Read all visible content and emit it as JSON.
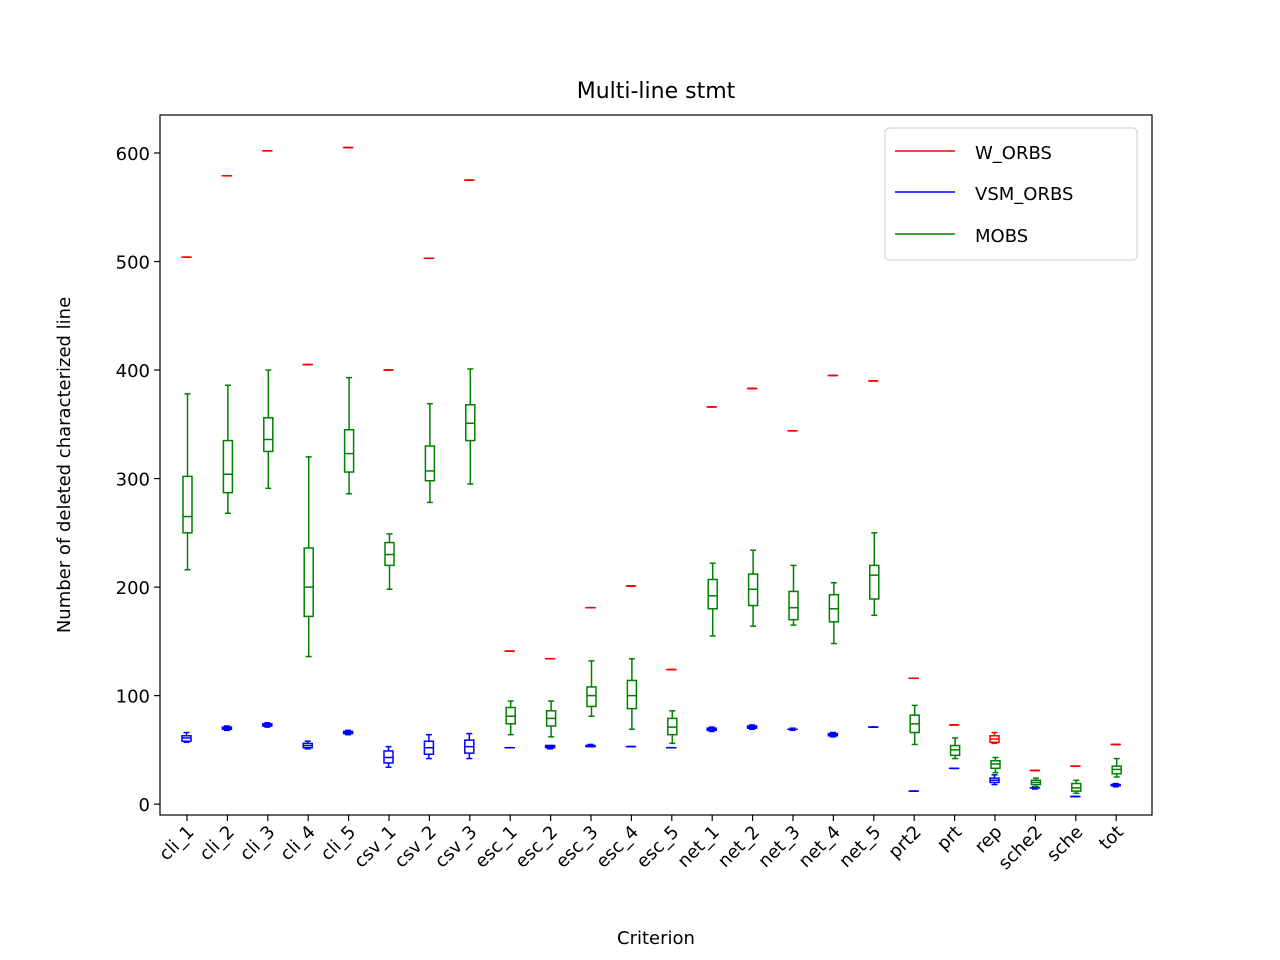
{
  "chart_data": {
    "type": "boxplot",
    "title": "Multi-line stmt",
    "xlabel": "Criterion",
    "ylabel": "Number of deleted characterized line",
    "ylim": [
      -10,
      635
    ],
    "yticks": [
      0,
      100,
      200,
      300,
      400,
      500,
      600
    ],
    "categories": [
      "cli_1",
      "cli_2",
      "cli_3",
      "cli_4",
      "cli_5",
      "csv_1",
      "csv_2",
      "csv_3",
      "esc_1",
      "esc_2",
      "esc_3",
      "esc_4",
      "esc_5",
      "net_1",
      "net_2",
      "net_3",
      "net_4",
      "net_5",
      "prt2",
      "prt",
      "rep",
      "sche2",
      "sche",
      "tot"
    ],
    "legend_position": "top-right",
    "series": [
      {
        "name": "W_ORBS",
        "color": "#ff0000",
        "boxes": [
          {
            "category": "cli_1",
            "min": 504,
            "q1": 504,
            "median": 504,
            "q3": 504,
            "max": 504
          },
          {
            "category": "cli_2",
            "min": 579,
            "q1": 579,
            "median": 579,
            "q3": 579,
            "max": 579
          },
          {
            "category": "cli_3",
            "min": 602,
            "q1": 602,
            "median": 602,
            "q3": 602,
            "max": 602
          },
          {
            "category": "cli_4",
            "min": 405,
            "q1": 405,
            "median": 405,
            "q3": 405,
            "max": 405
          },
          {
            "category": "cli_5",
            "min": 605,
            "q1": 605,
            "median": 605,
            "q3": 605,
            "max": 605
          },
          {
            "category": "csv_1",
            "min": 400,
            "q1": 400,
            "median": 400,
            "q3": 400,
            "max": 400
          },
          {
            "category": "csv_2",
            "min": 503,
            "q1": 503,
            "median": 503,
            "q3": 503,
            "max": 503
          },
          {
            "category": "csv_3",
            "min": 575,
            "q1": 575,
            "median": 575,
            "q3": 575,
            "max": 575
          },
          {
            "category": "esc_1",
            "min": 141,
            "q1": 141,
            "median": 141,
            "q3": 141,
            "max": 141
          },
          {
            "category": "esc_2",
            "min": 134,
            "q1": 134,
            "median": 134,
            "q3": 134,
            "max": 134
          },
          {
            "category": "esc_3",
            "min": 181,
            "q1": 181,
            "median": 181,
            "q3": 181,
            "max": 181
          },
          {
            "category": "esc_4",
            "min": 201,
            "q1": 201,
            "median": 201,
            "q3": 201,
            "max": 201
          },
          {
            "category": "esc_5",
            "min": 124,
            "q1": 124,
            "median": 124,
            "q3": 124,
            "max": 124
          },
          {
            "category": "net_1",
            "min": 366,
            "q1": 366,
            "median": 366,
            "q3": 366,
            "max": 366
          },
          {
            "category": "net_2",
            "min": 383,
            "q1": 383,
            "median": 383,
            "q3": 383,
            "max": 383
          },
          {
            "category": "net_3",
            "min": 344,
            "q1": 344,
            "median": 344,
            "q3": 344,
            "max": 344
          },
          {
            "category": "net_4",
            "min": 395,
            "q1": 395,
            "median": 395,
            "q3": 395,
            "max": 395
          },
          {
            "category": "net_5",
            "min": 390,
            "q1": 390,
            "median": 390,
            "q3": 390,
            "max": 390
          },
          {
            "category": "prt2",
            "min": 116,
            "q1": 116,
            "median": 116,
            "q3": 116,
            "max": 116
          },
          {
            "category": "prt",
            "min": 73,
            "q1": 73,
            "median": 73,
            "q3": 73,
            "max": 73
          },
          {
            "category": "rep",
            "min": 56,
            "q1": 57,
            "median": 60,
            "q3": 63,
            "max": 66
          },
          {
            "category": "sche2",
            "min": 31,
            "q1": 31,
            "median": 31,
            "q3": 31,
            "max": 31
          },
          {
            "category": "sche",
            "min": 35,
            "q1": 35,
            "median": 35,
            "q3": 35,
            "max": 35
          },
          {
            "category": "tot",
            "min": 55,
            "q1": 55,
            "median": 55,
            "q3": 55,
            "max": 55
          }
        ]
      },
      {
        "name": "VSM_ORBS",
        "color": "#0000ff",
        "boxes": [
          {
            "category": "cli_1",
            "min": 57,
            "q1": 58,
            "median": 61,
            "q3": 63,
            "max": 66
          },
          {
            "category": "cli_2",
            "min": 68,
            "q1": 69,
            "median": 70,
            "q3": 71,
            "max": 72
          },
          {
            "category": "cli_3",
            "min": 71,
            "q1": 72,
            "median": 73,
            "q3": 74,
            "max": 75
          },
          {
            "category": "cli_4",
            "min": 51,
            "q1": 52,
            "median": 54,
            "q3": 56,
            "max": 58
          },
          {
            "category": "cli_5",
            "min": 64,
            "q1": 65,
            "median": 66,
            "q3": 67,
            "max": 68
          },
          {
            "category": "csv_1",
            "min": 34,
            "q1": 38,
            "median": 43,
            "q3": 49,
            "max": 53
          },
          {
            "category": "csv_2",
            "min": 42,
            "q1": 46,
            "median": 52,
            "q3": 58,
            "max": 64
          },
          {
            "category": "csv_3",
            "min": 42,
            "q1": 47,
            "median": 53,
            "q3": 59,
            "max": 65
          },
          {
            "category": "esc_1",
            "min": 52,
            "q1": 52,
            "median": 52,
            "q3": 52,
            "max": 52
          },
          {
            "category": "esc_2",
            "min": 51,
            "q1": 52,
            "median": 53,
            "q3": 54,
            "max": 54
          },
          {
            "category": "esc_3",
            "min": 53,
            "q1": 53,
            "median": 54,
            "q3": 54,
            "max": 55
          },
          {
            "category": "esc_4",
            "min": 53,
            "q1": 53,
            "median": 53,
            "q3": 53,
            "max": 53
          },
          {
            "category": "esc_5",
            "min": 52,
            "q1": 52,
            "median": 52,
            "q3": 52,
            "max": 52
          },
          {
            "category": "net_1",
            "min": 67,
            "q1": 68,
            "median": 69,
            "q3": 70,
            "max": 71
          },
          {
            "category": "net_2",
            "min": 69,
            "q1": 70,
            "median": 71,
            "q3": 72,
            "max": 73
          },
          {
            "category": "net_3",
            "min": 68,
            "q1": 69,
            "median": 69,
            "q3": 69,
            "max": 70
          },
          {
            "category": "net_4",
            "min": 62,
            "q1": 63,
            "median": 64,
            "q3": 65,
            "max": 66
          },
          {
            "category": "net_5",
            "min": 71,
            "q1": 71,
            "median": 71,
            "q3": 71,
            "max": 71
          },
          {
            "category": "prt2",
            "min": 12,
            "q1": 12,
            "median": 12,
            "q3": 12,
            "max": 12
          },
          {
            "category": "prt",
            "min": 33,
            "q1": 33,
            "median": 33,
            "q3": 33,
            "max": 33
          },
          {
            "category": "rep",
            "min": 18,
            "q1": 20,
            "median": 22,
            "q3": 24,
            "max": 27
          },
          {
            "category": "sche2",
            "min": 14,
            "q1": 15,
            "median": 15,
            "q3": 15,
            "max": 16
          },
          {
            "category": "sche",
            "min": 7,
            "q1": 7,
            "median": 7,
            "q3": 7,
            "max": 7
          },
          {
            "category": "tot",
            "min": 16,
            "q1": 17,
            "median": 18,
            "q3": 18,
            "max": 19
          }
        ]
      },
      {
        "name": "MOBS",
        "color": "#008000",
        "boxes": [
          {
            "category": "cli_1",
            "min": 216,
            "q1": 250,
            "median": 265,
            "q3": 302,
            "max": 378
          },
          {
            "category": "cli_2",
            "min": 268,
            "q1": 287,
            "median": 304,
            "q3": 335,
            "max": 386
          },
          {
            "category": "cli_3",
            "min": 291,
            "q1": 325,
            "median": 336,
            "q3": 356,
            "max": 400
          },
          {
            "category": "cli_4",
            "min": 136,
            "q1": 173,
            "median": 200,
            "q3": 236,
            "max": 320
          },
          {
            "category": "cli_5",
            "min": 286,
            "q1": 306,
            "median": 323,
            "q3": 345,
            "max": 393
          },
          {
            "category": "csv_1",
            "min": 198,
            "q1": 220,
            "median": 230,
            "q3": 241,
            "max": 249
          },
          {
            "category": "csv_2",
            "min": 278,
            "q1": 298,
            "median": 307,
            "q3": 330,
            "max": 369
          },
          {
            "category": "csv_3",
            "min": 295,
            "q1": 335,
            "median": 351,
            "q3": 368,
            "max": 401
          },
          {
            "category": "esc_1",
            "min": 64,
            "q1": 74,
            "median": 81,
            "q3": 89,
            "max": 95
          },
          {
            "category": "esc_2",
            "min": 62,
            "q1": 72,
            "median": 79,
            "q3": 86,
            "max": 95
          },
          {
            "category": "esc_3",
            "min": 81,
            "q1": 90,
            "median": 100,
            "q3": 108,
            "max": 132
          },
          {
            "category": "esc_4",
            "min": 69,
            "q1": 88,
            "median": 100,
            "q3": 114,
            "max": 134
          },
          {
            "category": "esc_5",
            "min": 56,
            "q1": 64,
            "median": 71,
            "q3": 79,
            "max": 86
          },
          {
            "category": "net_1",
            "min": 155,
            "q1": 180,
            "median": 192,
            "q3": 207,
            "max": 222
          },
          {
            "category": "net_2",
            "min": 164,
            "q1": 183,
            "median": 198,
            "q3": 212,
            "max": 234
          },
          {
            "category": "net_3",
            "min": 165,
            "q1": 170,
            "median": 181,
            "q3": 196,
            "max": 220
          },
          {
            "category": "net_4",
            "min": 148,
            "q1": 168,
            "median": 180,
            "q3": 193,
            "max": 204
          },
          {
            "category": "net_5",
            "min": 174,
            "q1": 189,
            "median": 211,
            "q3": 220,
            "max": 250
          },
          {
            "category": "prt2",
            "min": 55,
            "q1": 66,
            "median": 74,
            "q3": 82,
            "max": 91
          },
          {
            "category": "prt",
            "min": 42,
            "q1": 45,
            "median": 50,
            "q3": 54,
            "max": 61
          },
          {
            "category": "rep",
            "min": 29,
            "q1": 33,
            "median": 37,
            "q3": 40,
            "max": 43
          },
          {
            "category": "sche2",
            "min": 16,
            "q1": 18,
            "median": 20,
            "q3": 22,
            "max": 24
          },
          {
            "category": "sche",
            "min": 10,
            "q1": 12,
            "median": 15,
            "q3": 19,
            "max": 22
          },
          {
            "category": "tot",
            "min": 25,
            "q1": 28,
            "median": 32,
            "q3": 35,
            "max": 42
          }
        ]
      }
    ]
  }
}
